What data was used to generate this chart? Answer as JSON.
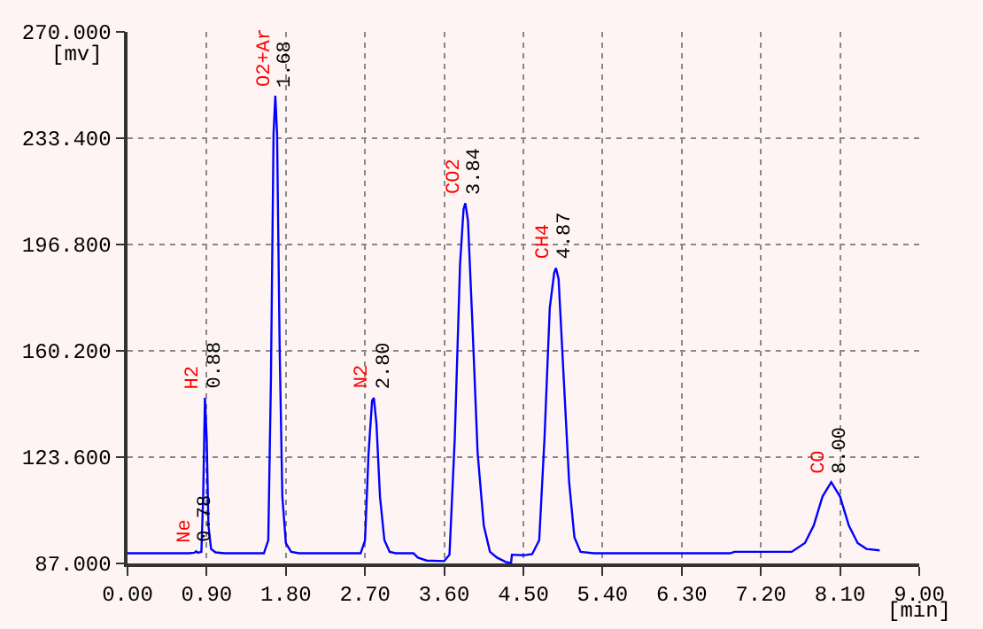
{
  "chart_data": {
    "type": "line",
    "xlabel": "[min]",
    "ylabel": "[mv]",
    "x": [
      0,
      0.7,
      0.76,
      0.78,
      0.8,
      0.84,
      0.86,
      0.88,
      0.9,
      0.92,
      0.95,
      1.0,
      1.1,
      1.55,
      1.6,
      1.63,
      1.66,
      1.68,
      1.7,
      1.73,
      1.76,
      1.8,
      1.86,
      1.95,
      2.65,
      2.7,
      2.74,
      2.78,
      2.8,
      2.83,
      2.87,
      2.92,
      2.98,
      3.05,
      3.25,
      3.3,
      3.4,
      3.6,
      3.66,
      3.72,
      3.78,
      3.82,
      3.84,
      3.87,
      3.92,
      3.98,
      4.05,
      4.12,
      4.2,
      4.3,
      4.36,
      4.37,
      4.5,
      4.6,
      4.68,
      4.74,
      4.8,
      4.85,
      4.87,
      4.9,
      4.96,
      5.02,
      5.08,
      5.15,
      5.3,
      6.85,
      6.9,
      7.55,
      7.7,
      7.8,
      7.9,
      8.0,
      8.1,
      8.2,
      8.3,
      8.4,
      8.55
    ],
    "series": [
      {
        "color": "#0000ff",
        "values": [
          90.5,
          90.5,
          90.7,
          91.2,
          90.7,
          91,
          110,
          144,
          130,
          100,
          92,
          90.8,
          90.5,
          90.5,
          95,
          150,
          235,
          248,
          235,
          160,
          110,
          94,
          91,
          90.5,
          90.5,
          95,
          125,
          143,
          144,
          135,
          110,
          95,
          91,
          90.5,
          90.5,
          89,
          88,
          87.8,
          90,
          130,
          190,
          209,
          211,
          205,
          170,
          125,
          100,
          91,
          89,
          87.5,
          87.2,
          90,
          89.8,
          90.2,
          95,
          130,
          175,
          187,
          188.7,
          185,
          150,
          115,
          96,
          91,
          90.5,
          90.5,
          91,
          91,
          94,
          100,
          110,
          115,
          110,
          100,
          94,
          92,
          91.5
        ]
      }
    ],
    "xlim": [
      0,
      9
    ],
    "ylim": [
      87,
      270
    ],
    "xticks": [
      {
        "value": 0,
        "label": "0.00"
      },
      {
        "value": 0.9,
        "label": "0.90"
      },
      {
        "value": 1.8,
        "label": "1.80"
      },
      {
        "value": 2.7,
        "label": "2.70"
      },
      {
        "value": 3.6,
        "label": "3.60"
      },
      {
        "value": 4.5,
        "label": "4.50"
      },
      {
        "value": 5.4,
        "label": "5.40"
      },
      {
        "value": 6.3,
        "label": "6.30"
      },
      {
        "value": 7.2,
        "label": "7.20"
      },
      {
        "value": 8.1,
        "label": "8.10"
      },
      {
        "value": 9,
        "label": "9.00"
      }
    ],
    "yticks": [
      {
        "value": 87,
        "label": "87.000"
      },
      {
        "value": 123.6,
        "label": "123.600"
      },
      {
        "value": 160.2,
        "label": "160.200"
      },
      {
        "value": 196.8,
        "label": "196.800"
      },
      {
        "value": 233.4,
        "label": "233.400"
      },
      {
        "value": 270,
        "label": "270.000"
      }
    ],
    "grid": true,
    "line_style": "solid",
    "marker": "none",
    "annotations": [
      {
        "text": "Ne",
        "x": 0.78,
        "y": 91.2
      },
      {
        "text": "0.78",
        "x": 0.78,
        "y": 91.2
      },
      {
        "text": "H2",
        "x": 0.88,
        "y": 144
      },
      {
        "text": "0.88",
        "x": 0.88,
        "y": 144
      },
      {
        "text": "O2+Ar",
        "x": 1.68,
        "y": 248
      },
      {
        "text": "1.68",
        "x": 1.68,
        "y": 248
      },
      {
        "text": "N2",
        "x": 2.8,
        "y": 144
      },
      {
        "text": "2.80",
        "x": 2.8,
        "y": 144
      },
      {
        "text": "CO2",
        "x": 3.84,
        "y": 211
      },
      {
        "text": "3.84",
        "x": 3.84,
        "y": 211
      },
      {
        "text": "CH4",
        "x": 4.87,
        "y": 188.7
      },
      {
        "text": "4.87",
        "x": 4.87,
        "y": 188.7
      },
      {
        "text": "CO",
        "x": 8.0,
        "y": 115
      },
      {
        "text": "8.00",
        "x": 8.0,
        "y": 115
      }
    ]
  }
}
